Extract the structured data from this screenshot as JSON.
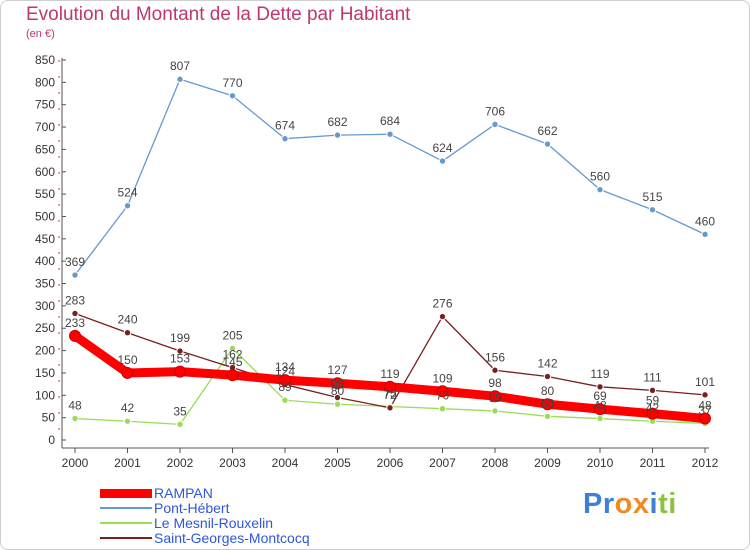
{
  "chart_data": {
    "type": "line",
    "title": "Evolution du Montant de la Dette par Habitant",
    "subtitle": "(en €)",
    "x": [
      "2000",
      "2001",
      "2002",
      "2003",
      "2004",
      "2005",
      "2006",
      "2007",
      "2008",
      "2009",
      "2010",
      "2011",
      "2012"
    ],
    "ylim": [
      0,
      850
    ],
    "yticks": [
      0,
      50,
      100,
      150,
      200,
      250,
      300,
      350,
      400,
      450,
      500,
      550,
      600,
      650,
      700,
      750,
      800,
      850
    ],
    "grid": false,
    "legend_position": "bottom-left",
    "series": [
      {
        "name": "RAMPAN",
        "color": "#ff0000",
        "values": [
          233,
          150,
          153,
          145,
          134,
          127,
          119,
          109,
          98,
          80,
          69,
          59,
          48
        ]
      },
      {
        "name": "Pont-Hébert",
        "color": "#6699cc",
        "values": [
          369,
          524,
          807,
          770,
          674,
          682,
          684,
          624,
          706,
          662,
          560,
          515,
          460
        ]
      },
      {
        "name": "Le Mesnil-Rouxelin",
        "color": "#99dd55",
        "values": [
          48,
          42,
          35,
          205,
          89,
          80,
          75,
          70,
          65,
          53,
          48,
          42,
          37
        ]
      },
      {
        "name": "Saint-Georges-Montcocq",
        "color": "#7a1f1f",
        "values": [
          283,
          240,
          199,
          162,
          124,
          95,
          72,
          276,
          156,
          142,
          119,
          111,
          101
        ]
      }
    ]
  },
  "logo": {
    "text": "Proxiti",
    "colors": [
      "#3f7fd8",
      "#3f7fd8",
      "#f08a24",
      "#f08a24",
      "#3f7fd8",
      "#8ac43f",
      "#8ac43f"
    ]
  }
}
